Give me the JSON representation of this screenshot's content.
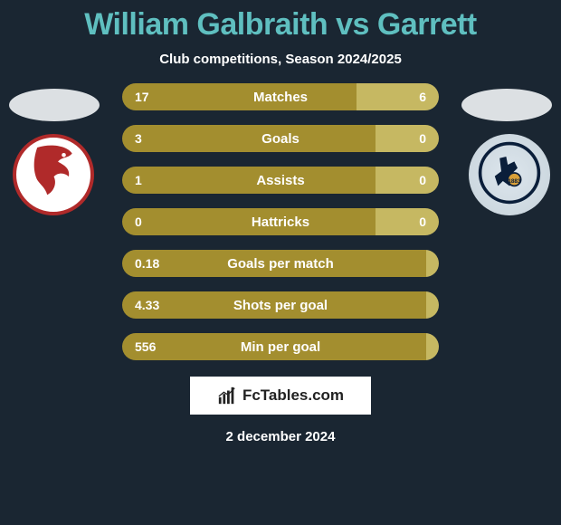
{
  "title": "William Galbraith vs Garrett",
  "subtitle": "Club competitions, Season 2024/2025",
  "date": "2 december 2024",
  "fctables_label": "FcTables.com",
  "colors": {
    "primary": "#a38e2f",
    "secondary": "#c6b862",
    "background": "#1a2632",
    "title": "#5fbfc0"
  },
  "bars": [
    {
      "label": "Matches",
      "left": "17",
      "right": "6",
      "left_pct": 74,
      "right_color": "#c6b862"
    },
    {
      "label": "Goals",
      "left": "3",
      "right": "0",
      "left_pct": 80,
      "right_color": "#c6b862"
    },
    {
      "label": "Assists",
      "left": "1",
      "right": "0",
      "left_pct": 80,
      "right_color": "#c6b862"
    },
    {
      "label": "Hattricks",
      "left": "0",
      "right": "0",
      "left_pct": 80,
      "right_color": "#c6b862"
    },
    {
      "label": "Goals per match",
      "left": "0.18",
      "right": "",
      "left_pct": 100,
      "right_color": "#c6b862"
    },
    {
      "label": "Shots per goal",
      "left": "4.33",
      "right": "",
      "left_pct": 100,
      "right_color": "#c6b862"
    },
    {
      "label": "Min per goal",
      "left": "556",
      "right": "",
      "left_pct": 100,
      "right_color": "#c6b862"
    }
  ]
}
